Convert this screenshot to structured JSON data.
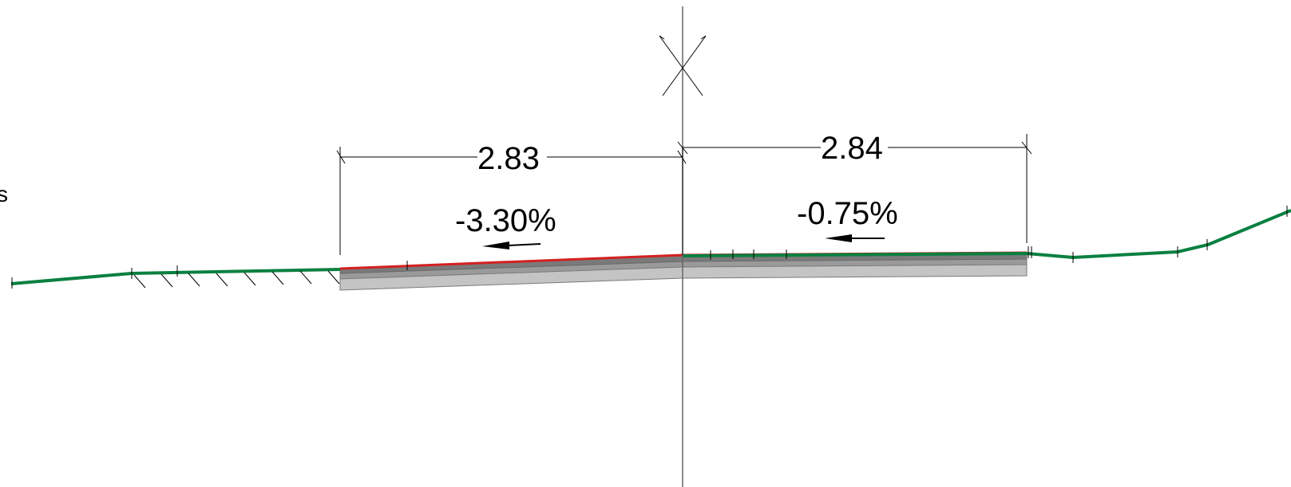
{
  "drawing": {
    "left_width_label": "2.83",
    "right_width_label": "2.84",
    "left_slope_label": "-3.30%",
    "right_slope_label": "-0.75%",
    "cut_off_side_label": "s"
  },
  "colors": {
    "background": "#ffffff",
    "ground_line": "#0a8040",
    "pavement_surface": "#d42020",
    "layer_dark": "#7a7a7a",
    "layer_mid": "#9a9a9a",
    "layer_light": "#c4c4c4",
    "lines": "#000000",
    "centerline": "#666666"
  }
}
